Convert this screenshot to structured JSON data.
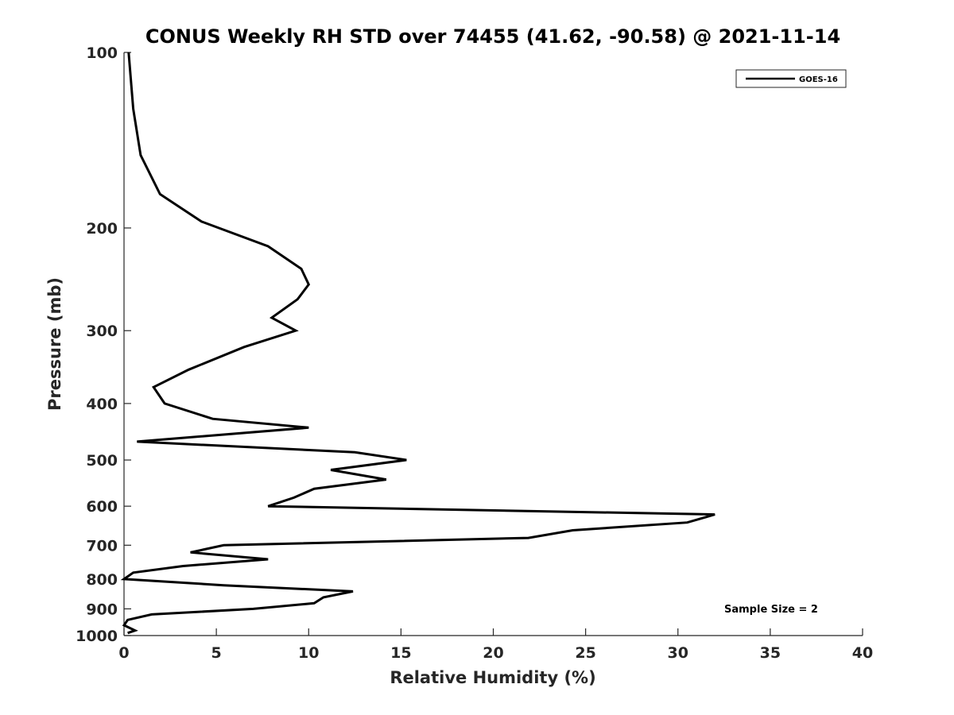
{
  "chart_data": {
    "type": "line",
    "title": "CONUS Weekly RH STD over 74455 (41.62, -90.58) @ 2021-11-14",
    "xlabel": "Relative Humidity (%)",
    "ylabel": "Pressure (mb)",
    "xlim": [
      0,
      40
    ],
    "ylim": [
      100,
      1000
    ],
    "y_scale": "log",
    "y_reversed": true,
    "xticks": [
      0,
      5,
      10,
      15,
      20,
      25,
      30,
      35,
      40
    ],
    "yticks": [
      100,
      200,
      300,
      400,
      500,
      600,
      700,
      800,
      900,
      1000
    ],
    "grid": false,
    "legend_position": "top-right",
    "annotation": "Sample Size = 2",
    "series": [
      {
        "name": "GOES-16",
        "color": "#000000",
        "points": [
          [
            0.25,
            100
          ],
          [
            0.5,
            125
          ],
          [
            0.9,
            150
          ],
          [
            1.95,
            175
          ],
          [
            4.2,
            195
          ],
          [
            7.8,
            215
          ],
          [
            9.6,
            235
          ],
          [
            10.0,
            250
          ],
          [
            9.4,
            265
          ],
          [
            8.0,
            285
          ],
          [
            9.3,
            300
          ],
          [
            6.5,
            320
          ],
          [
            3.5,
            350
          ],
          [
            1.6,
            375
          ],
          [
            2.2,
            400
          ],
          [
            4.8,
            425
          ],
          [
            10.0,
            440
          ],
          [
            0.7,
            465
          ],
          [
            12.5,
            485
          ],
          [
            15.3,
            500
          ],
          [
            11.2,
            520
          ],
          [
            14.2,
            540
          ],
          [
            10.3,
            560
          ],
          [
            9.2,
            580
          ],
          [
            7.8,
            600
          ],
          [
            32.0,
            620
          ],
          [
            30.5,
            640
          ],
          [
            24.3,
            660
          ],
          [
            21.9,
            680
          ],
          [
            5.4,
            700
          ],
          [
            3.6,
            720
          ],
          [
            7.8,
            740
          ],
          [
            3.2,
            760
          ],
          [
            0.5,
            780
          ],
          [
            0.0,
            800
          ],
          [
            5.4,
            820
          ],
          [
            12.4,
            840
          ],
          [
            10.8,
            860
          ],
          [
            10.3,
            880
          ],
          [
            7.0,
            900
          ],
          [
            1.5,
            920
          ],
          [
            0.2,
            940
          ],
          [
            0.0,
            960
          ],
          [
            0.6,
            980
          ],
          [
            0.2,
            990
          ]
        ]
      }
    ]
  }
}
